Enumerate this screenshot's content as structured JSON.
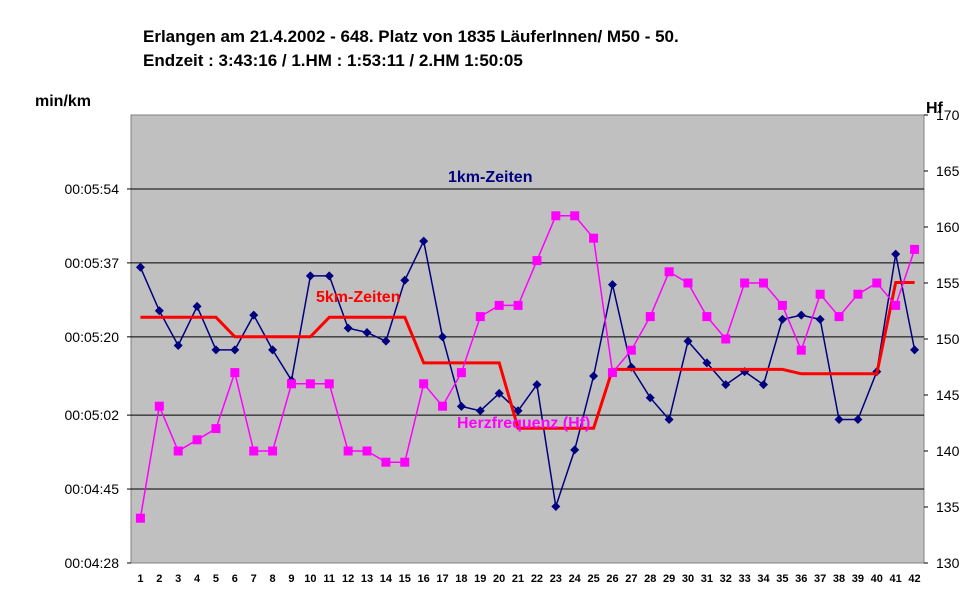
{
  "chart_data": {
    "type": "line",
    "title_line1": "Erlangen am 21.4.2002 - 648. Platz von 1835 LäuferInnen/ M50 - 50.",
    "title_line2": "Endzeit : 3:43:16  / 1.HM : 1:53:11  / 2.HM  1:50:05",
    "y_left_label": "min/km",
    "y_right_label": "Hf",
    "y_left_ticks": [
      "00:04:28",
      "00:04:45",
      "00:05:02",
      "00:05:20",
      "00:05:37",
      "00:05:54"
    ],
    "y_left_range_seconds": [
      268,
      371
    ],
    "y_right_ticks": [
      130,
      135,
      140,
      145,
      150,
      155,
      160,
      165,
      170
    ],
    "y_right_range": [
      130,
      170
    ],
    "x_categories": [
      1,
      2,
      3,
      4,
      5,
      6,
      7,
      8,
      9,
      10,
      11,
      12,
      13,
      14,
      15,
      16,
      17,
      18,
      19,
      20,
      21,
      22,
      23,
      24,
      25,
      26,
      27,
      28,
      29,
      30,
      31,
      32,
      33,
      34,
      35,
      36,
      37,
      38,
      39,
      40,
      41,
      42
    ],
    "grid": "horizontal",
    "plot_background": "#c0c0c0",
    "series": [
      {
        "name": "1km-Zeiten",
        "axis": "left",
        "color": "#000080",
        "marker": "diamond",
        "values_seconds": [
          336,
          326,
          318,
          327,
          317,
          317,
          325,
          317,
          310,
          334,
          334,
          322,
          321,
          319,
          333,
          342,
          320,
          304,
          303,
          307,
          303,
          309,
          281,
          294,
          311,
          332,
          313,
          306,
          301,
          319,
          314,
          309,
          312,
          309,
          324,
          325,
          324,
          301,
          301,
          312,
          339,
          317
        ]
      },
      {
        "name": "5km-Zeiten",
        "axis": "left",
        "color": "#ff0000",
        "marker": "none",
        "values_seconds": [
          324.5,
          324.5,
          324.5,
          324.5,
          324.5,
          320.0,
          320.0,
          320.0,
          320.0,
          320.0,
          324.5,
          324.5,
          324.5,
          324.5,
          324.5,
          314.0,
          314.0,
          314.0,
          314.0,
          314.0,
          299.0,
          299.0,
          299.0,
          299.0,
          299.0,
          312.5,
          312.5,
          312.5,
          312.5,
          312.5,
          312.5,
          312.5,
          312.5,
          312.5,
          312.5,
          311.5,
          311.5,
          311.5,
          311.5,
          311.5,
          332.5,
          332.5
        ]
      },
      {
        "name": "Herzfrequenz (Hf)",
        "axis": "right",
        "color": "#ff00ff",
        "marker": "square",
        "values": [
          134,
          144,
          140,
          141,
          142,
          147,
          140,
          140,
          146,
          146,
          146,
          140,
          140,
          139,
          139,
          146,
          144,
          147,
          152,
          153,
          153,
          157,
          161,
          161,
          159,
          147,
          149,
          152,
          156,
          155,
          152,
          150,
          155,
          155,
          153,
          149,
          154,
          152,
          154,
          155,
          153,
          158
        ]
      }
    ],
    "annotations": [
      {
        "text": "1km-Zeiten",
        "color": "#000080"
      },
      {
        "text": "5km-Zeiten",
        "color": "#ff0000"
      },
      {
        "text": "Herzfrequenz (Hf)",
        "color": "#ff00ff"
      }
    ]
  }
}
